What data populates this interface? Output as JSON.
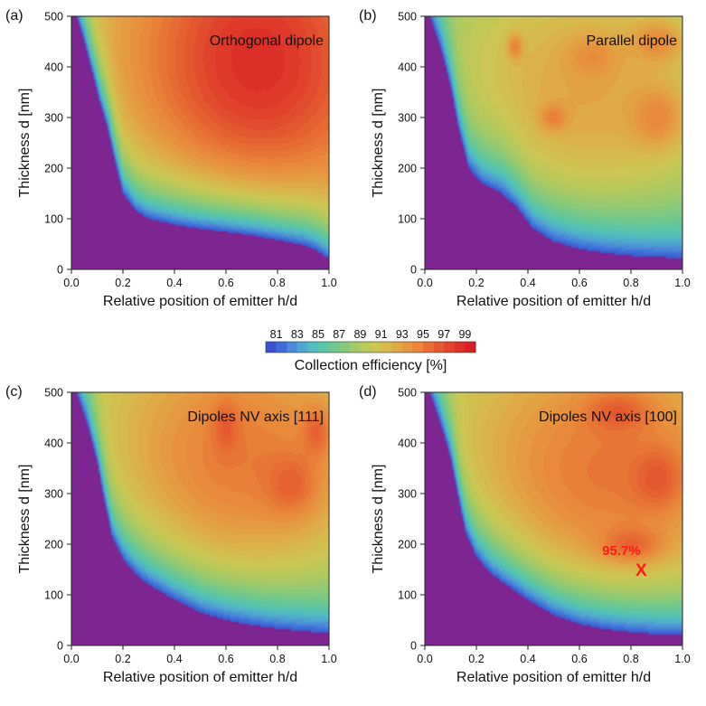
{
  "chart_data": {
    "type": "heatmap",
    "colorbar": {
      "label": "Collection efficiency [%]",
      "tick_labels": [
        "81",
        "83",
        "85",
        "87",
        "89",
        "91",
        "93",
        "95",
        "97",
        "99"
      ],
      "range": [
        80,
        100
      ],
      "colors": [
        "#3a52cc",
        "#3f6bd8",
        "#4a8ad8",
        "#4fa6d0",
        "#52bcc0",
        "#5ac6a8",
        "#6ec890",
        "#86c97c",
        "#a0c96a",
        "#b8c95c",
        "#ccc654",
        "#d7b94c",
        "#e0a846",
        "#e69640",
        "#e8853a",
        "#e67034",
        "#e45a30",
        "#e0442c",
        "#dc3028",
        "#d82024"
      ]
    },
    "floor_color": "#7d2590",
    "panels": [
      {
        "id": "a",
        "panel_label": "(a)",
        "title": "Orthogonal dipole",
        "xlabel": "Relative position of emitter h/d",
        "ylabel": "Thickness d [nm]",
        "xlim": [
          0,
          1
        ],
        "ylim": [
          0,
          500
        ],
        "x_ticks": [
          "0.0",
          "0.2",
          "0.4",
          "0.6",
          "0.8",
          "1.0"
        ],
        "y_ticks": [
          "0",
          "100",
          "200",
          "300",
          "400",
          "500"
        ],
        "boundary": [
          [
            0.02,
            500
          ],
          [
            0.05,
            450
          ],
          [
            0.08,
            390
          ],
          [
            0.11,
            330
          ],
          [
            0.14,
            280
          ],
          [
            0.17,
            210
          ],
          [
            0.2,
            150
          ],
          [
            0.25,
            115
          ],
          [
            0.3,
            100
          ],
          [
            0.4,
            88
          ],
          [
            0.5,
            80
          ],
          [
            0.6,
            74
          ],
          [
            0.7,
            67
          ],
          [
            0.8,
            58
          ],
          [
            0.9,
            48
          ],
          [
            0.95,
            38
          ],
          [
            1.0,
            20
          ]
        ],
        "peak": {
          "x": 0.72,
          "y": 400,
          "value": 99.5
        },
        "peak_rx": 0.5,
        "peak_ry": 330,
        "base_efficiency": 80.5,
        "hotspots": []
      },
      {
        "id": "b",
        "panel_label": "(b)",
        "title": "Parallel dipole",
        "xlabel": "Relative position of emitter h/d",
        "ylabel": "Thickness d [nm]",
        "xlim": [
          0,
          1
        ],
        "ylim": [
          0,
          500
        ],
        "x_ticks": [
          "0.0",
          "0.2",
          "0.4",
          "0.6",
          "0.8",
          "1.0"
        ],
        "y_ticks": [
          "0",
          "100",
          "200",
          "300",
          "400",
          "500"
        ],
        "boundary": [
          [
            0.02,
            500
          ],
          [
            0.06,
            440
          ],
          [
            0.1,
            360
          ],
          [
            0.13,
            280
          ],
          [
            0.17,
            200
          ],
          [
            0.22,
            170
          ],
          [
            0.3,
            150
          ],
          [
            0.36,
            120
          ],
          [
            0.42,
            80
          ],
          [
            0.5,
            55
          ],
          [
            0.6,
            40
          ],
          [
            0.7,
            32
          ],
          [
            0.8,
            27
          ],
          [
            0.9,
            24
          ],
          [
            1.0,
            22
          ]
        ],
        "peak": {
          "x": 0.62,
          "y": 330,
          "value": 93.2
        },
        "peak_rx": 0.6,
        "peak_ry": 300,
        "base_efficiency": 80.5,
        "hotspots": [
          {
            "x": 0.5,
            "y": 300,
            "rx": 0.05,
            "ry": 25,
            "value": 95.5
          },
          {
            "x": 0.35,
            "y": 440,
            "rx": 0.03,
            "ry": 25,
            "value": 95.2
          },
          {
            "x": 0.9,
            "y": 300,
            "rx": 0.1,
            "ry": 60,
            "value": 95.0
          },
          {
            "x": 0.65,
            "y": 420,
            "rx": 0.1,
            "ry": 40,
            "value": 94.6
          },
          {
            "x": 0.9,
            "y": 450,
            "rx": 0.1,
            "ry": 40,
            "value": 94.8
          }
        ]
      },
      {
        "id": "c",
        "panel_label": "(c)",
        "title": "Dipoles NV axis [111]",
        "xlabel": "Relative position of emitter h/d",
        "ylabel": "Thickness d [nm]",
        "xlim": [
          0,
          1
        ],
        "ylim": [
          0,
          500
        ],
        "x_ticks": [
          "0.0",
          "0.2",
          "0.4",
          "0.6",
          "0.8",
          "1.0"
        ],
        "y_ticks": [
          "0",
          "100",
          "200",
          "300",
          "400",
          "500"
        ],
        "boundary": [
          [
            0.02,
            500
          ],
          [
            0.06,
            440
          ],
          [
            0.1,
            360
          ],
          [
            0.13,
            280
          ],
          [
            0.16,
            210
          ],
          [
            0.2,
            170
          ],
          [
            0.25,
            140
          ],
          [
            0.3,
            120
          ],
          [
            0.4,
            90
          ],
          [
            0.5,
            65
          ],
          [
            0.6,
            50
          ],
          [
            0.7,
            40
          ],
          [
            0.8,
            33
          ],
          [
            0.9,
            28
          ],
          [
            1.0,
            24
          ]
        ],
        "peak": {
          "x": 0.65,
          "y": 360,
          "value": 95.6
        },
        "peak_rx": 0.55,
        "peak_ry": 290,
        "base_efficiency": 80.5,
        "hotspots": [
          {
            "x": 0.6,
            "y": 430,
            "rx": 0.05,
            "ry": 50,
            "value": 97.2
          },
          {
            "x": 0.85,
            "y": 320,
            "rx": 0.1,
            "ry": 60,
            "value": 97.0
          },
          {
            "x": 0.95,
            "y": 420,
            "rx": 0.06,
            "ry": 50,
            "value": 96.8
          }
        ]
      },
      {
        "id": "d",
        "panel_label": "(d)",
        "title": "Dipoles NV axis [100]",
        "xlabel": "Relative position of emitter h/d",
        "ylabel": "Thickness d [nm]",
        "xlim": [
          0,
          1
        ],
        "ylim": [
          0,
          500
        ],
        "x_ticks": [
          "0.0",
          "0.2",
          "0.4",
          "0.6",
          "0.8",
          "1.0"
        ],
        "y_ticks": [
          "0",
          "100",
          "200",
          "300",
          "400",
          "500"
        ],
        "boundary": [
          [
            0.02,
            500
          ],
          [
            0.06,
            440
          ],
          [
            0.1,
            370
          ],
          [
            0.13,
            290
          ],
          [
            0.16,
            220
          ],
          [
            0.2,
            175
          ],
          [
            0.25,
            145
          ],
          [
            0.3,
            125
          ],
          [
            0.4,
            90
          ],
          [
            0.5,
            60
          ],
          [
            0.6,
            42
          ],
          [
            0.7,
            32
          ],
          [
            0.8,
            26
          ],
          [
            0.9,
            22
          ],
          [
            1.0,
            20
          ]
        ],
        "peak": {
          "x": 0.7,
          "y": 330,
          "value": 95.8
        },
        "peak_rx": 0.6,
        "peak_ry": 300,
        "base_efficiency": 80.5,
        "hotspots": [
          {
            "x": 0.9,
            "y": 330,
            "rx": 0.1,
            "ry": 60,
            "value": 97.4
          },
          {
            "x": 0.75,
            "y": 460,
            "rx": 0.12,
            "ry": 40,
            "value": 97.2
          },
          {
            "x": 0.8,
            "y": 200,
            "rx": 0.12,
            "ry": 35,
            "value": 97.0
          }
        ],
        "annotation": {
          "text": "95.7%",
          "marker": "X",
          "x": 0.84,
          "y": 150,
          "color": "#ff1a1a"
        }
      }
    ]
  }
}
